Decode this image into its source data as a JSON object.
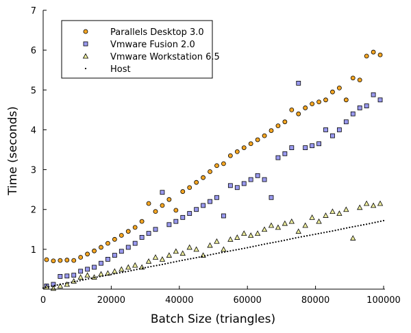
{
  "chart_data": {
    "type": "scatter",
    "title": "",
    "xlabel": "Batch Size (triangles)",
    "ylabel": "Time (seconds)",
    "xlim": [
      0,
      100000
    ],
    "ylim": [
      0,
      7
    ],
    "xticks": [
      "0",
      "20000",
      "40000",
      "60000",
      "80000",
      "100000"
    ],
    "yticks": [
      "1",
      "2",
      "3",
      "4",
      "5",
      "6",
      "7"
    ],
    "grid": false,
    "legend_position": "top-left",
    "x": [
      1000,
      3000,
      5000,
      7000,
      9000,
      11000,
      13000,
      15000,
      17000,
      19000,
      21000,
      23000,
      25000,
      27000,
      29000,
      31000,
      33000,
      35000,
      37000,
      39000,
      41000,
      43000,
      45000,
      47000,
      49000,
      51000,
      53000,
      55000,
      57000,
      59000,
      61000,
      63000,
      65000,
      67000,
      69000,
      71000,
      73000,
      75000,
      77000,
      79000,
      81000,
      83000,
      85000,
      87000,
      89000,
      91000,
      93000,
      95000,
      97000,
      99000
    ],
    "series": [
      {
        "name": "Parallels Desktop 3.0",
        "marker": "circle",
        "color": "#f5a623",
        "values": [
          0.74,
          0.71,
          0.72,
          0.73,
          0.72,
          0.8,
          0.88,
          0.96,
          1.05,
          1.15,
          1.25,
          1.35,
          1.45,
          1.55,
          1.7,
          2.15,
          1.95,
          2.1,
          2.25,
          1.98,
          2.45,
          2.55,
          2.68,
          2.8,
          2.95,
          3.1,
          3.15,
          3.35,
          3.45,
          3.55,
          3.65,
          3.75,
          3.85,
          3.98,
          4.1,
          4.2,
          4.5,
          4.4,
          4.55,
          4.65,
          4.7,
          4.75,
          4.95,
          5.05,
          4.75,
          5.3,
          5.25,
          5.85,
          5.95,
          5.88
        ]
      },
      {
        "name": "Vmware Fusion 2.0",
        "marker": "square",
        "color": "#9999ee",
        "values": [
          0.08,
          0.12,
          0.32,
          0.33,
          0.35,
          0.45,
          0.5,
          0.55,
          0.65,
          0.75,
          0.85,
          0.95,
          1.05,
          1.15,
          1.3,
          1.4,
          1.5,
          2.43,
          1.62,
          1.7,
          1.8,
          1.9,
          2.0,
          2.1,
          2.2,
          2.3,
          1.84,
          2.6,
          2.55,
          2.65,
          2.75,
          2.85,
          2.75,
          2.3,
          3.3,
          3.4,
          3.55,
          5.17,
          3.55,
          3.6,
          3.65,
          4.0,
          3.85,
          4.0,
          4.2,
          4.4,
          4.55,
          4.6,
          4.88,
          4.75
        ]
      },
      {
        "name": "Vmware Workstation 6.5",
        "marker": "triangle",
        "color": "#f0f0a0",
        "values": [
          0.05,
          0.02,
          0.08,
          0.12,
          0.2,
          0.3,
          0.35,
          0.3,
          0.38,
          0.4,
          0.45,
          0.5,
          0.55,
          0.6,
          0.55,
          0.7,
          0.8,
          0.75,
          0.85,
          0.95,
          0.9,
          1.05,
          1.0,
          0.85,
          1.1,
          1.2,
          1.0,
          1.25,
          1.3,
          1.4,
          1.35,
          1.4,
          1.5,
          1.6,
          1.55,
          1.65,
          1.7,
          1.45,
          1.6,
          1.8,
          1.7,
          1.85,
          1.95,
          1.9,
          2.0,
          1.28,
          2.05,
          2.15,
          2.1,
          2.15
        ]
      },
      {
        "name": "Host",
        "marker": "dot",
        "color": "#000000",
        "x": [
          0,
          5000,
          10000,
          15000,
          20000,
          25000,
          30000,
          35000,
          40000,
          45000,
          50000,
          55000,
          60000,
          65000,
          70000,
          75000,
          80000,
          85000,
          90000,
          95000,
          100000
        ],
        "values": [
          0.03,
          0.12,
          0.2,
          0.29,
          0.37,
          0.45,
          0.54,
          0.62,
          0.71,
          0.79,
          0.88,
          0.96,
          1.04,
          1.13,
          1.21,
          1.3,
          1.38,
          1.46,
          1.55,
          1.63,
          1.72
        ]
      }
    ]
  }
}
